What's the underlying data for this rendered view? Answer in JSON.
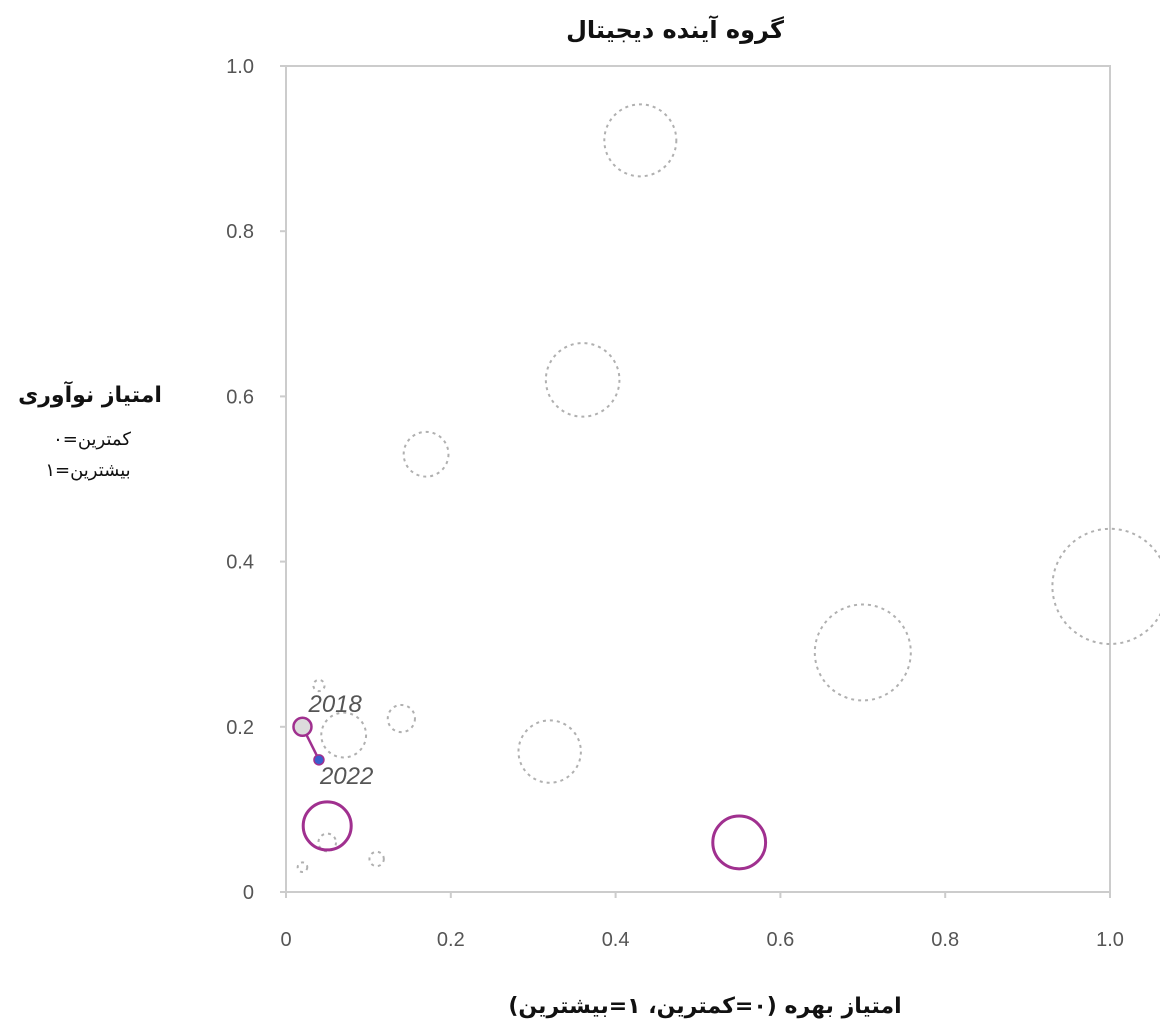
{
  "chart_data": {
    "type": "scatter",
    "title": "گروه آینده دیجیتال",
    "xlabel": "امتیاز بهره (۰=کمترین، ۱=بیشترین)",
    "ylabel": "امتیاز نوآوری",
    "ylabel_lines": [
      "۰=کمترین",
      "۱=بیشترین"
    ],
    "xlim": [
      0,
      1
    ],
    "ylim": [
      0,
      1
    ],
    "xticks": [
      0,
      0.2,
      0.4,
      0.6,
      0.8,
      1.0
    ],
    "xtick_labels": [
      "0",
      "0.2",
      "0.4",
      "0.6",
      "0.8",
      "1.0"
    ],
    "yticks": [
      0,
      0.2,
      0.4,
      0.6,
      0.8,
      1.0
    ],
    "ytick_labels": [
      "0",
      "0.2",
      "0.4",
      "0.6",
      "0.8",
      "1.0"
    ],
    "grid": false,
    "colors": {
      "highlight": "#a0308f",
      "background": "#b0b0b0",
      "dot_2022": "#3a5fcd",
      "dot_2018": "#dcdcdc"
    },
    "background_bubbles": [
      {
        "x": 0.43,
        "y": 0.91,
        "size": 45
      },
      {
        "x": 0.36,
        "y": 0.62,
        "size": 46
      },
      {
        "x": 0.17,
        "y": 0.53,
        "size": 28
      },
      {
        "x": 1.0,
        "y": 0.37,
        "size": 72
      },
      {
        "x": 0.7,
        "y": 0.29,
        "size": 60
      },
      {
        "x": 0.32,
        "y": 0.17,
        "size": 39
      },
      {
        "x": 0.14,
        "y": 0.21,
        "size": 17
      },
      {
        "x": 0.04,
        "y": 0.25,
        "size": 7
      },
      {
        "x": 0.07,
        "y": 0.19,
        "size": 28
      },
      {
        "x": 0.05,
        "y": 0.06,
        "size": 11
      },
      {
        "x": 0.11,
        "y": 0.04,
        "size": 9
      },
      {
        "x": 0.02,
        "y": 0.03,
        "size": 6
      }
    ],
    "highlight_bubbles": [
      {
        "x": 0.05,
        "y": 0.08,
        "size": 30
      },
      {
        "x": 0.55,
        "y": 0.06,
        "size": 33
      }
    ],
    "trajectory": [
      {
        "year": "2018",
        "x": 0.02,
        "y": 0.2
      },
      {
        "year": "2022",
        "x": 0.04,
        "y": 0.16
      }
    ]
  }
}
